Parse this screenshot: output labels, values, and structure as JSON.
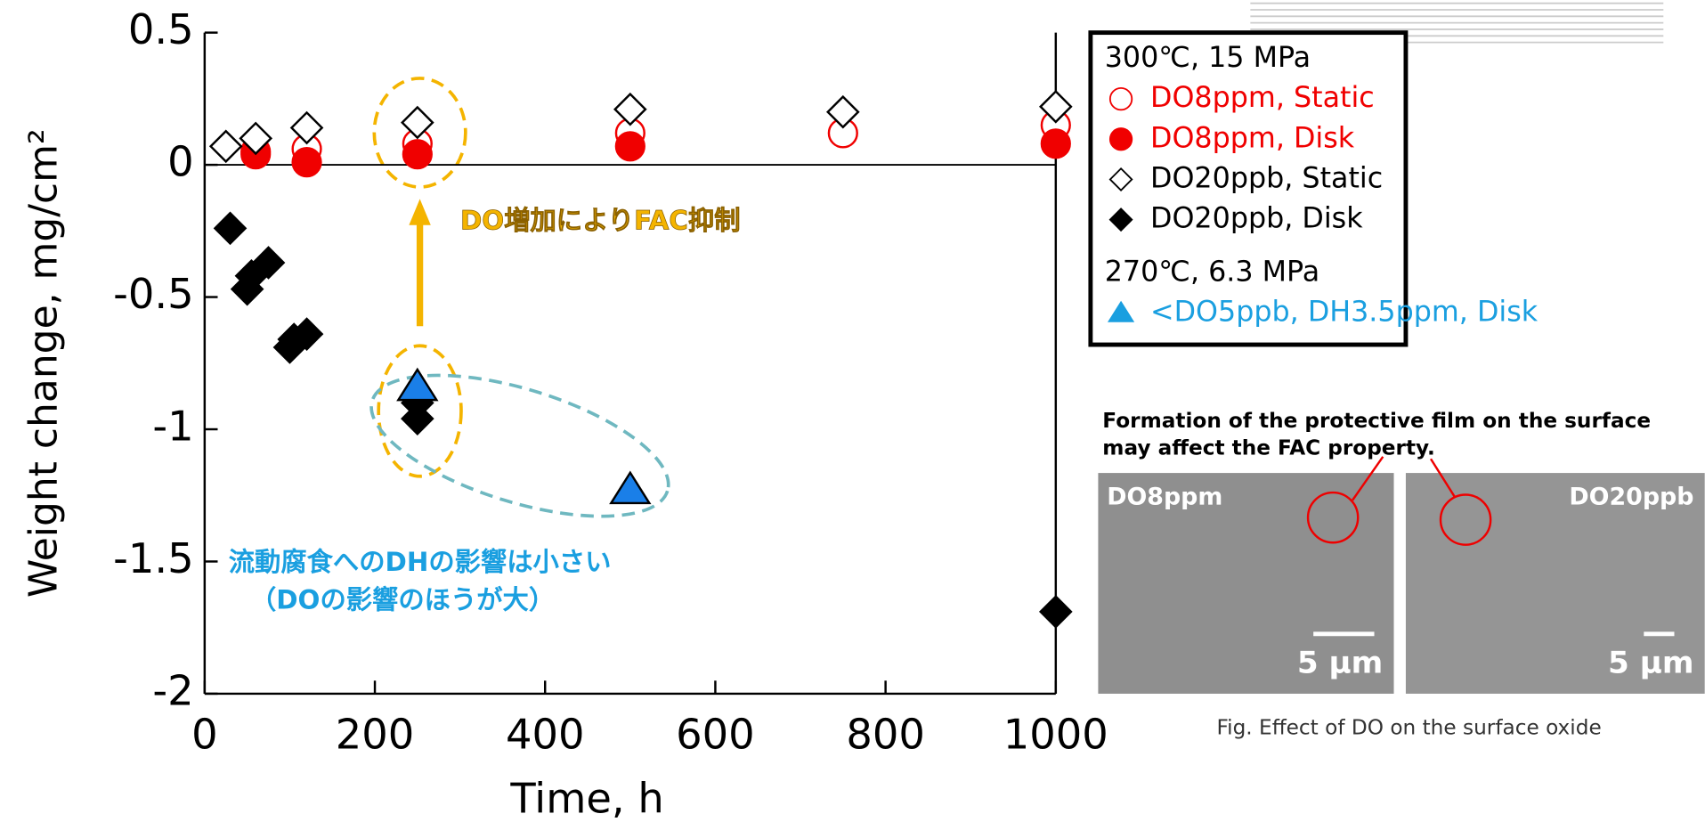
{
  "chart_data": {
    "type": "scatter",
    "xlabel": "Time, h",
    "ylabel": "Weight change, mg/cm²",
    "xlim": [
      0,
      1000
    ],
    "xticks": [
      0,
      200,
      400,
      600,
      800,
      1000
    ],
    "ylim": [
      -2,
      0.5
    ],
    "yticks": [
      0.5,
      0,
      -0.5,
      -1,
      -1.5,
      -2
    ],
    "legend_titles": [
      "300℃, 15 MPa",
      "270℃, 6.3 MPa"
    ],
    "series": [
      {
        "name": "DO8ppm, Static",
        "color": "#f00000",
        "marker": "circle",
        "filled": false,
        "x": [
          60,
          120,
          250,
          500,
          750,
          1000
        ],
        "values": [
          0.05,
          0.06,
          0.08,
          0.12,
          0.12,
          0.15
        ]
      },
      {
        "name": "DO8ppm, Disk",
        "color": "#f00000",
        "marker": "circle",
        "filled": true,
        "x": [
          60,
          120,
          250,
          500,
          1000
        ],
        "values": [
          0.04,
          0.01,
          0.04,
          0.07,
          0.08
        ]
      },
      {
        "name": "DO20ppb, Static",
        "color": "#000000",
        "marker": "diamond",
        "filled": false,
        "x": [
          25,
          60,
          120,
          250,
          500,
          750,
          1000
        ],
        "values": [
          0.07,
          0.1,
          0.14,
          0.16,
          0.21,
          0.2,
          0.22
        ]
      },
      {
        "name": "DO20ppb, Disk",
        "color": "#000000",
        "marker": "diamond",
        "filled": true,
        "x": [
          30,
          50,
          55,
          75,
          100,
          105,
          120,
          250,
          250,
          1000
        ],
        "values": [
          -0.24,
          -0.47,
          -0.42,
          -0.37,
          -0.69,
          -0.66,
          -0.64,
          -0.96,
          -0.9,
          -1.69
        ]
      },
      {
        "name": "<DO5ppb, DH3.5ppm, Disk",
        "color": "#1a9fe0",
        "marker": "triangle",
        "filled": true,
        "x": [
          250,
          500
        ],
        "values": [
          -0.84,
          -1.23
        ]
      }
    ],
    "annotations": [
      "DO増加によりFAC抑制",
      "流動腐食へのDHの影響は小さい",
      "（DOの影響のほうが大）"
    ]
  },
  "figure": {
    "note": [
      "Formation of the protective film on the surface",
      "may affect the FAC property."
    ],
    "panels": [
      {
        "label": "DO8ppm",
        "scale": "5 µm"
      },
      {
        "label": "DO20ppb",
        "scale": "5 µm"
      }
    ],
    "caption": "Fig. Effect of DO on the surface oxide"
  }
}
